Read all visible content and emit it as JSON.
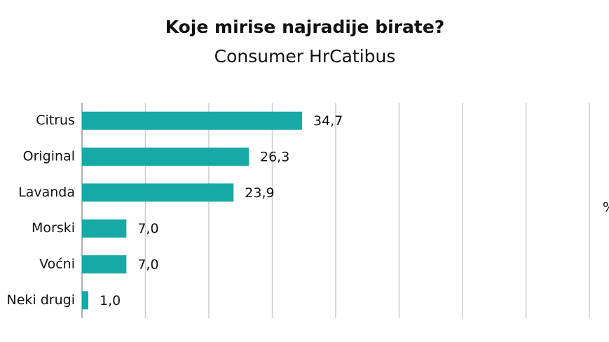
{
  "chart_data": {
    "type": "bar",
    "orientation": "horizontal",
    "title": "Koje mirise najradije birate?",
    "subtitle": "Consumer HrCatibus",
    "x_label": "%",
    "categories": [
      "Citrus",
      "Original",
      "Lavanda",
      "Morski",
      "Voćni",
      "Neki drugi"
    ],
    "values": [
      34.7,
      26.3,
      23.9,
      7.0,
      7.0,
      1.0
    ],
    "value_labels": [
      "34,7",
      "26,3",
      "23,9",
      "7,0",
      "7,0",
      "1,0"
    ],
    "color": "#17a9a6",
    "xlim": [
      0,
      80
    ],
    "xticks": [
      0,
      10,
      20,
      30,
      40,
      50,
      60,
      70,
      80
    ],
    "grid": true
  }
}
